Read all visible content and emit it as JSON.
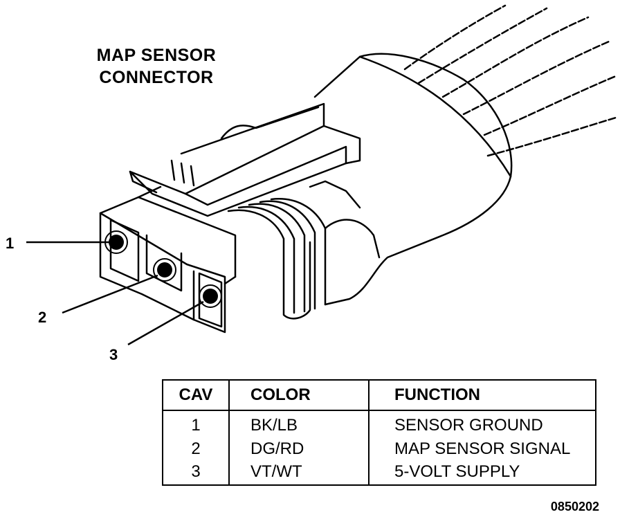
{
  "title": {
    "line1": "MAP SENSOR",
    "line2": "CONNECTOR"
  },
  "pin_labels": [
    "1",
    "2",
    "3"
  ],
  "table": {
    "headers": {
      "cav": "CAV",
      "color": "COLOR",
      "function": "FUNCTION"
    },
    "rows": [
      {
        "cav": "1",
        "color": "BK/LB",
        "function": "SENSOR GROUND"
      },
      {
        "cav": "2",
        "color": "DG/RD",
        "function": "MAP SENSOR SIGNAL"
      },
      {
        "cav": "3",
        "color": "VT/WT",
        "function": "5-VOLT SUPPLY"
      }
    ]
  },
  "figure_number": "0850202"
}
